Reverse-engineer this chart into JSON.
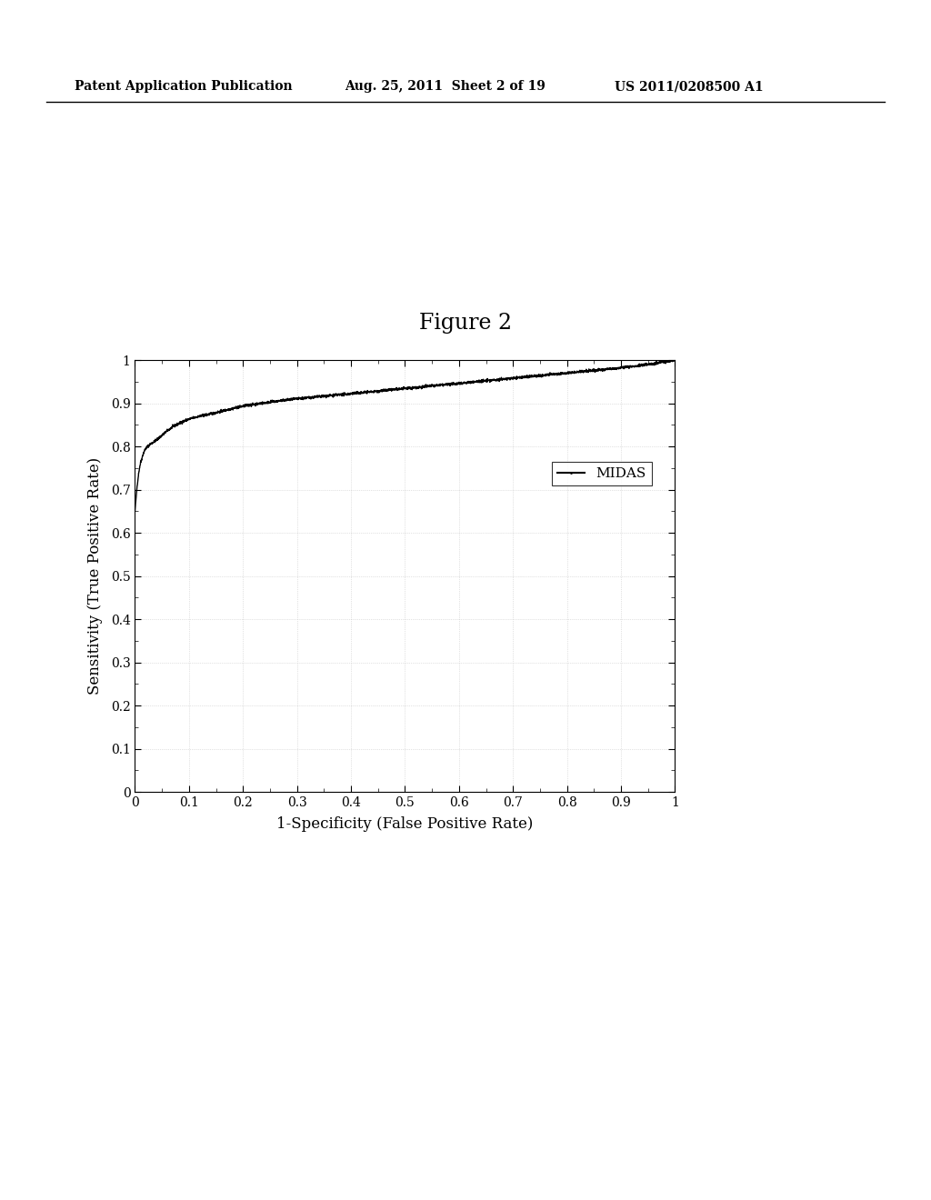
{
  "title": "Figure 2",
  "xlabel": "1-Specificity (False Positive Rate)",
  "ylabel": "Sensitivity (True Positive Rate)",
  "xlim": [
    0,
    1
  ],
  "ylim": [
    0,
    1
  ],
  "xticks": [
    0,
    0.1,
    0.2,
    0.3,
    0.4,
    0.5,
    0.6,
    0.7,
    0.8,
    0.9,
    1
  ],
  "yticks": [
    0,
    0.1,
    0.2,
    0.3,
    0.4,
    0.5,
    0.6,
    0.7,
    0.8,
    0.9,
    1
  ],
  "legend_label": "MIDAS",
  "line_color": "#000000",
  "background_color": "#ffffff",
  "header_left": "Patent Application Publication",
  "header_center": "Aug. 25, 2011  Sheet 2 of 19",
  "header_right": "US 2011/0208500 A1",
  "title_fontsize": 17,
  "axis_fontsize": 12,
  "tick_fontsize": 10,
  "header_fontsize": 10,
  "legend_fontsize": 11
}
